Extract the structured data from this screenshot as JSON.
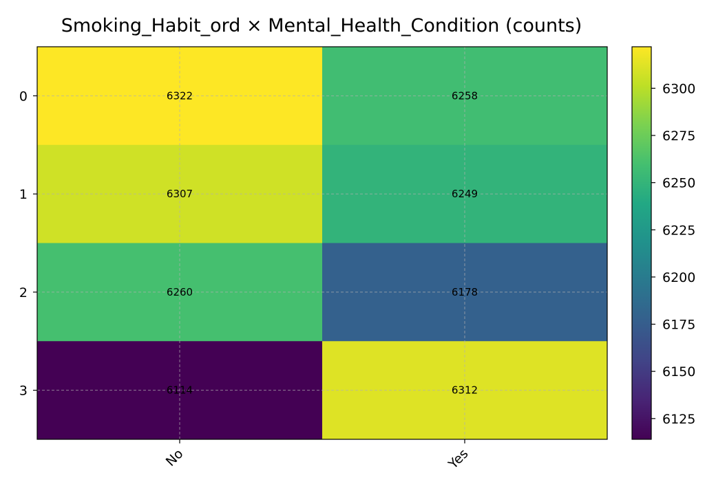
{
  "chart_data": {
    "type": "heatmap",
    "title": "Smoking_Habit_ord × Mental_Health_Condition (counts)",
    "xlabel": "",
    "ylabel": "",
    "x_categories": [
      "No",
      "Yes"
    ],
    "y_categories": [
      "0",
      "1",
      "2",
      "3"
    ],
    "values": [
      [
        6322,
        6258
      ],
      [
        6307,
        6249
      ],
      [
        6260,
        6178
      ],
      [
        6114,
        6312
      ]
    ],
    "colormap": "viridis",
    "colorbar": {
      "min": 6114,
      "max": 6322,
      "ticks": [
        6125,
        6150,
        6175,
        6200,
        6225,
        6250,
        6275,
        6300
      ]
    },
    "grid": true,
    "label_color": "#000000"
  }
}
